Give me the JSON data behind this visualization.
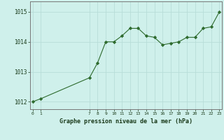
{
  "title": "Graphe pression niveau de la mer (hPa)",
  "background_color": "#cff0eb",
  "grid_color": "#b8ddd8",
  "line_color": "#2d6a2d",
  "marker_color": "#2d6a2d",
  "x_hours": [
    0,
    1,
    7,
    8,
    9,
    10,
    11,
    12,
    13,
    14,
    15,
    16,
    17,
    18,
    19,
    20,
    21,
    22,
    23
  ],
  "y_values": [
    1012.0,
    1012.1,
    1012.8,
    1013.3,
    1014.0,
    1014.0,
    1014.2,
    1014.45,
    1014.45,
    1014.2,
    1014.15,
    1013.9,
    1013.95,
    1014.0,
    1014.15,
    1014.15,
    1014.45,
    1014.5,
    1015.0
  ],
  "x_ticks": [
    0,
    1,
    7,
    8,
    9,
    10,
    11,
    12,
    13,
    14,
    15,
    16,
    17,
    18,
    19,
    20,
    21,
    22,
    23
  ],
  "y_ticks": [
    1012,
    1013,
    1014,
    1015
  ],
  "ylim": [
    1011.75,
    1015.35
  ],
  "xlim": [
    -0.3,
    23.3
  ],
  "figsize": [
    3.2,
    2.0
  ],
  "dpi": 100
}
